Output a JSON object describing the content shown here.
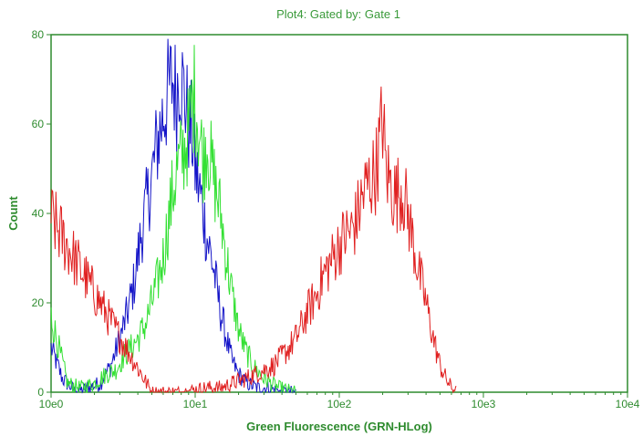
{
  "chart_data": {
    "type": "line",
    "title": "Plot4:  Gated by: Gate 1",
    "xlabel": "Green Fluorescence (GRN-HLog)",
    "ylabel": "Count",
    "x_scale": "log",
    "xlim": [
      1,
      10000
    ],
    "ylim": [
      0,
      80
    ],
    "x_ticks": [
      {
        "value": 1,
        "label": "10e0"
      },
      {
        "value": 10,
        "label": "10e1"
      },
      {
        "value": 100,
        "label": "10e2"
      },
      {
        "value": 1000,
        "label": "10e3"
      },
      {
        "value": 10000,
        "label": "10e4"
      }
    ],
    "y_ticks": [
      {
        "value": 0,
        "label": "0"
      },
      {
        "value": 20,
        "label": "20"
      },
      {
        "value": 40,
        "label": "40"
      },
      {
        "value": 60,
        "label": "60"
      },
      {
        "value": 80,
        "label": "80"
      }
    ],
    "grid": false,
    "legend": "none",
    "colors": {
      "frame": "#2e8b2e",
      "text": "#2e8b2e",
      "blue": "#1515c8",
      "green": "#33e033",
      "red": "#e02020"
    },
    "series": [
      {
        "color": "#1515c8",
        "x": [
          1.0,
          1.2,
          1.5,
          1.8,
          2.2,
          2.6,
          3.0,
          3.4,
          3.8,
          4.2,
          4.6,
          5.0,
          5.4,
          5.8,
          6.2,
          6.6,
          7.0,
          7.4,
          7.8,
          8.2,
          8.6,
          9.0,
          9.5,
          10.0,
          10.6,
          11.2,
          12.0,
          13.0,
          14.0,
          15.0,
          16.5,
          18.0,
          20.0,
          23.0,
          27.0,
          32.0,
          40.0,
          50.0
        ],
        "y": [
          10,
          3,
          0,
          1,
          2,
          6,
          12,
          18,
          25,
          35,
          42,
          48,
          55,
          60,
          64,
          68,
          70,
          66,
          73,
          68,
          65,
          60,
          58,
          50,
          46,
          42,
          35,
          30,
          24,
          18,
          12,
          7,
          4,
          2,
          1,
          1,
          0,
          0
        ]
      },
      {
        "color": "#33e033",
        "x": [
          1.0,
          1.3,
          1.6,
          2.0,
          2.4,
          2.8,
          3.2,
          3.6,
          4.0,
          4.5,
          5.0,
          5.5,
          6.0,
          6.5,
          7.0,
          7.5,
          8.0,
          8.5,
          9.0,
          9.5,
          10.0,
          10.5,
          11.0,
          11.5,
          12.0,
          12.5,
          13.0,
          14.0,
          15.0,
          16.5,
          18.0,
          20.0,
          22.0,
          25.0,
          30.0,
          38.0,
          50.0
        ],
        "y": [
          17,
          2,
          1,
          2,
          4,
          5,
          8,
          10,
          12,
          15,
          20,
          25,
          30,
          38,
          45,
          50,
          52,
          55,
          58,
          64,
          67,
          60,
          55,
          52,
          57,
          54,
          50,
          45,
          40,
          30,
          22,
          14,
          10,
          6,
          3,
          1,
          0
        ]
      },
      {
        "color": "#e02020",
        "x": [
          1.0,
          5.0,
          8.0,
          12.0,
          15.0,
          18.0,
          22.0,
          26.0,
          30.0,
          35.0,
          40.0,
          45.0,
          50.0,
          55.0,
          60.0,
          65.0,
          70.0,
          75.0,
          80.0,
          90.0,
          100.0,
          110.0,
          120.0,
          130.0,
          140.0,
          150.0,
          160.0,
          170.0,
          180.0,
          190.0,
          200.0,
          210.0,
          220.0,
          235.0,
          250.0,
          270.0,
          290.0,
          320.0,
          350.0,
          400.0,
          450.0,
          500.0,
          550.0,
          600.0,
          650.0
        ],
        "y": [
          39,
          0,
          0,
          1,
          1,
          2,
          3,
          4,
          5,
          6,
          8,
          10,
          12,
          15,
          18,
          20,
          22,
          25,
          27,
          30,
          33,
          35,
          36,
          38,
          42,
          45,
          47,
          48,
          50,
          55,
          62,
          50,
          48,
          45,
          44,
          46,
          42,
          35,
          28,
          20,
          12,
          6,
          3,
          1,
          0
        ]
      }
    ]
  }
}
